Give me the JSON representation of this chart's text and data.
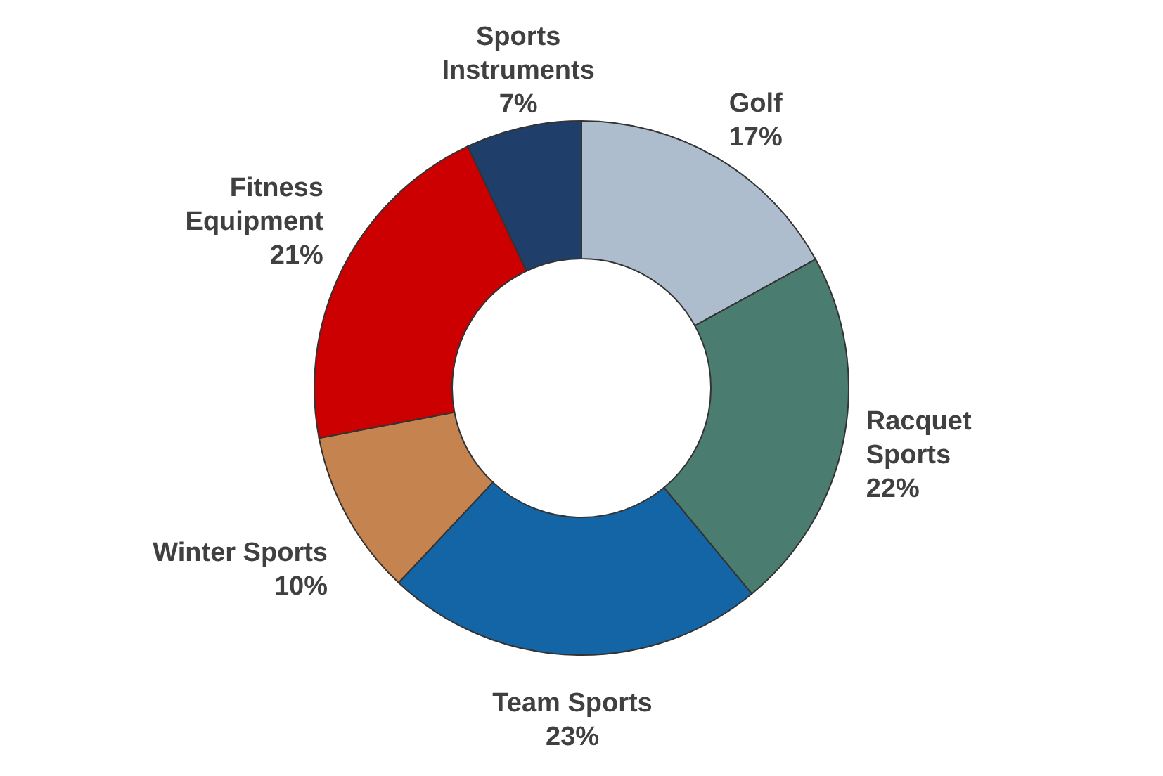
{
  "chart_data": {
    "type": "donut",
    "categories": [
      "Golf",
      "Racquet Sports",
      "Team Sports",
      "Winter Sports",
      "Fitness Equipment",
      "Sports Instruments"
    ],
    "values": [
      17,
      22,
      23,
      10,
      21,
      7
    ],
    "value_labels": [
      "17%",
      "22%",
      "23%",
      "10%",
      "21%",
      "7%"
    ],
    "colors": [
      "#adbdcd",
      "#4a7c70",
      "#1465a5",
      "#c5834f",
      "#cc0000",
      "#1f3e6a"
    ]
  }
}
